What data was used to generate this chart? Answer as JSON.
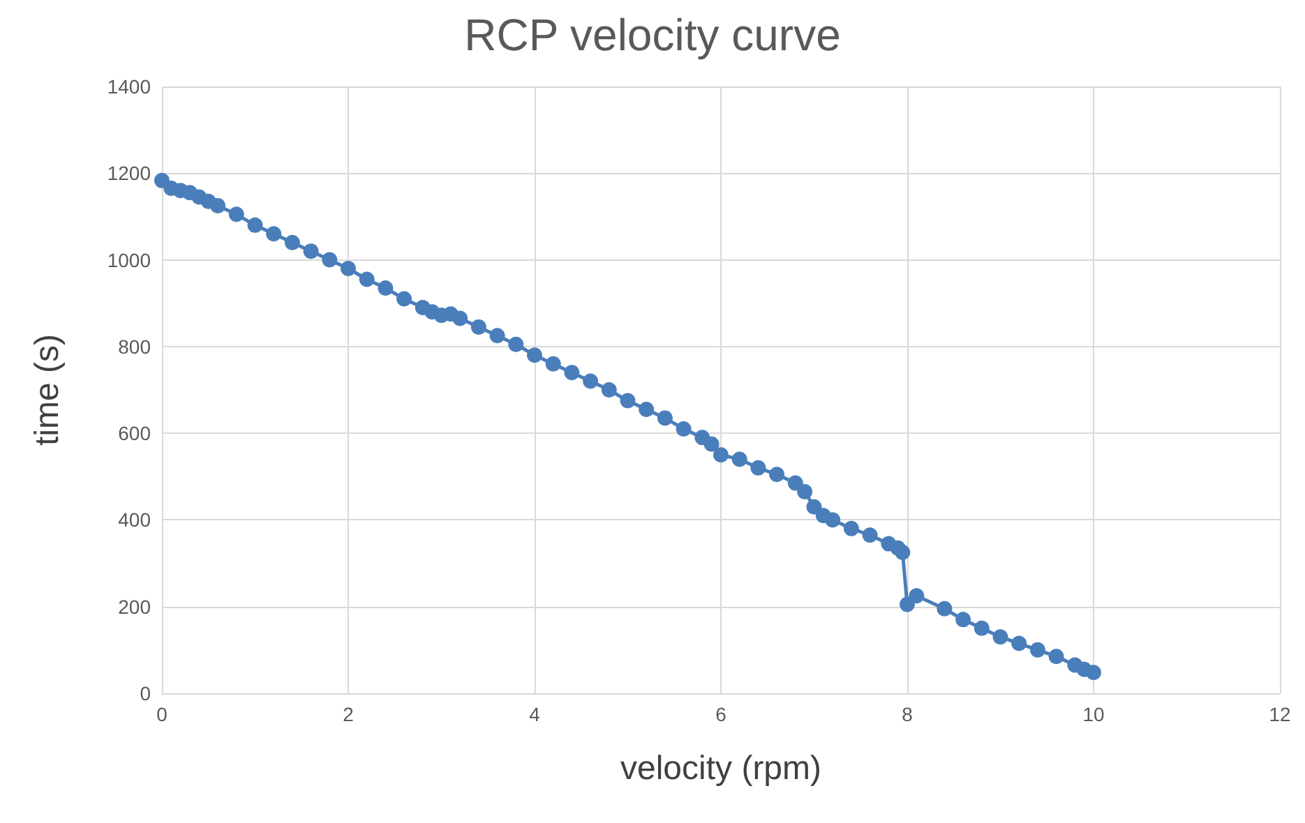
{
  "chart_data": {
    "type": "line",
    "title": "RCP velocity curve",
    "xlabel": "velocity (rpm)",
    "ylabel": "time (s)",
    "x": [
      0,
      0.1,
      0.2,
      0.3,
      0.4,
      0.5,
      0.6,
      0.8,
      1.0,
      1.2,
      1.4,
      1.6,
      1.8,
      2.0,
      2.2,
      2.4,
      2.6,
      2.8,
      2.9,
      3.0,
      3.1,
      3.2,
      3.4,
      3.6,
      3.8,
      4.0,
      4.2,
      4.4,
      4.6,
      4.8,
      5.0,
      5.2,
      5.4,
      5.6,
      5.8,
      5.9,
      6.0,
      6.2,
      6.4,
      6.6,
      6.8,
      6.9,
      7.0,
      7.1,
      7.2,
      7.4,
      7.6,
      7.8,
      7.9,
      7.95,
      8.0,
      8.1,
      8.4,
      8.6,
      8.8,
      9.0,
      9.2,
      9.4,
      9.6,
      9.8,
      9.9,
      10.0
    ],
    "series": [
      {
        "color": "#4a7ebb",
        "values": [
          1183,
          1165,
          1160,
          1155,
          1145,
          1135,
          1125,
          1105,
          1080,
          1060,
          1040,
          1020,
          1000,
          980,
          955,
          935,
          910,
          890,
          880,
          872,
          875,
          865,
          845,
          825,
          805,
          780,
          760,
          740,
          720,
          700,
          675,
          655,
          635,
          610,
          590,
          575,
          550,
          540,
          520,
          505,
          485,
          465,
          430,
          410,
          400,
          380,
          365,
          345,
          335,
          325,
          205,
          225,
          195,
          170,
          150,
          130,
          115,
          100,
          85,
          65,
          55,
          48
        ]
      }
    ],
    "xlim": [
      0,
      12
    ],
    "xticks": [
      0,
      2,
      4,
      6,
      8,
      10,
      12
    ],
    "ylim": [
      0,
      1400
    ],
    "yticks": [
      0,
      200,
      400,
      600,
      800,
      1000,
      1200,
      1400
    ],
    "grid": true,
    "marker": "circle",
    "line_style": "solid"
  }
}
